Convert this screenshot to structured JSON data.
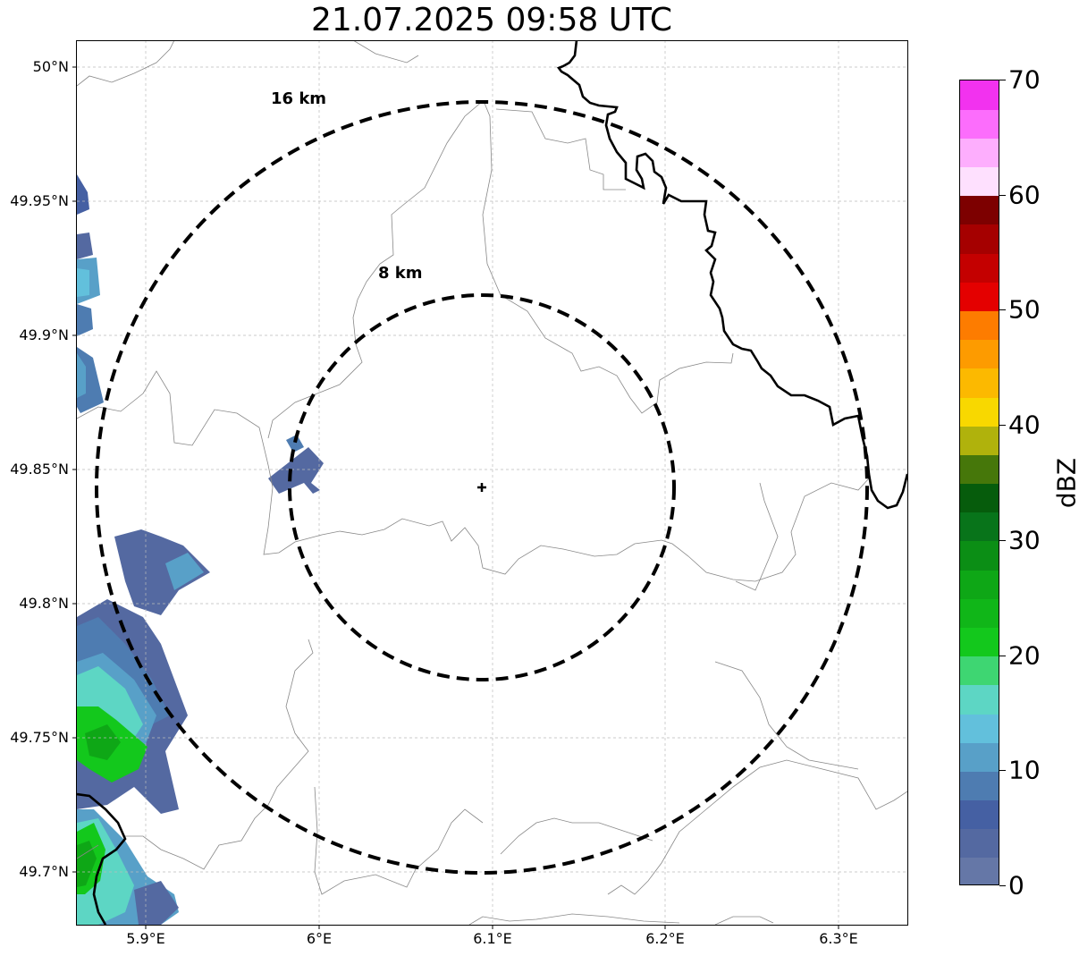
{
  "title": "21.07.2025 09:58 UTC",
  "map": {
    "lon_range": [
      5.86,
      6.34
    ],
    "lat_range": [
      49.68,
      50.01
    ],
    "center": {
      "lon": 6.095,
      "lat": 49.843
    },
    "lat_ticks": [
      {
        "value": 50.0,
        "label": "50°N"
      },
      {
        "value": 49.95,
        "label": "49.95°N"
      },
      {
        "value": 49.9,
        "label": "49.9°N"
      },
      {
        "value": 49.85,
        "label": "49.85°N"
      },
      {
        "value": 49.8,
        "label": "49.8°N"
      },
      {
        "value": 49.75,
        "label": "49.75°N"
      },
      {
        "value": 49.7,
        "label": "49.7°N"
      }
    ],
    "lon_ticks": [
      {
        "value": 5.9,
        "label": "5.9°E"
      },
      {
        "value": 6.0,
        "label": "6°E"
      },
      {
        "value": 6.1,
        "label": "6.1°E"
      },
      {
        "value": 6.2,
        "label": "6.2°E"
      },
      {
        "value": 6.3,
        "label": "6.3°E"
      }
    ],
    "rings": [
      {
        "radius_km": 8,
        "label": "8 km"
      },
      {
        "radius_km": 16,
        "label": "16 km"
      }
    ],
    "grid": true
  },
  "colorbar": {
    "label": "dBZ",
    "min": 0,
    "max": 70,
    "ticks": [
      "0",
      "10",
      "20",
      "30",
      "40",
      "50",
      "60",
      "70"
    ],
    "colors": [
      "#6577a7",
      "#5469a1",
      "#4560a3",
      "#4e7cb1",
      "#58a0c8",
      "#62c0dc",
      "#5dd6c4",
      "#3ed672",
      "#13c81c",
      "#10b618",
      "#0ea716",
      "#0b8e15",
      "#08741a",
      "#065c0c",
      "#46770a",
      "#b0b20c",
      "#f8d800",
      "#fcb900",
      "#fd9b00",
      "#fd7c00",
      "#e40000",
      "#c40000",
      "#a50000",
      "#7d0000",
      "#fee0fe",
      "#fdaefd",
      "#fc6dfc",
      "#f232ef"
    ]
  }
}
